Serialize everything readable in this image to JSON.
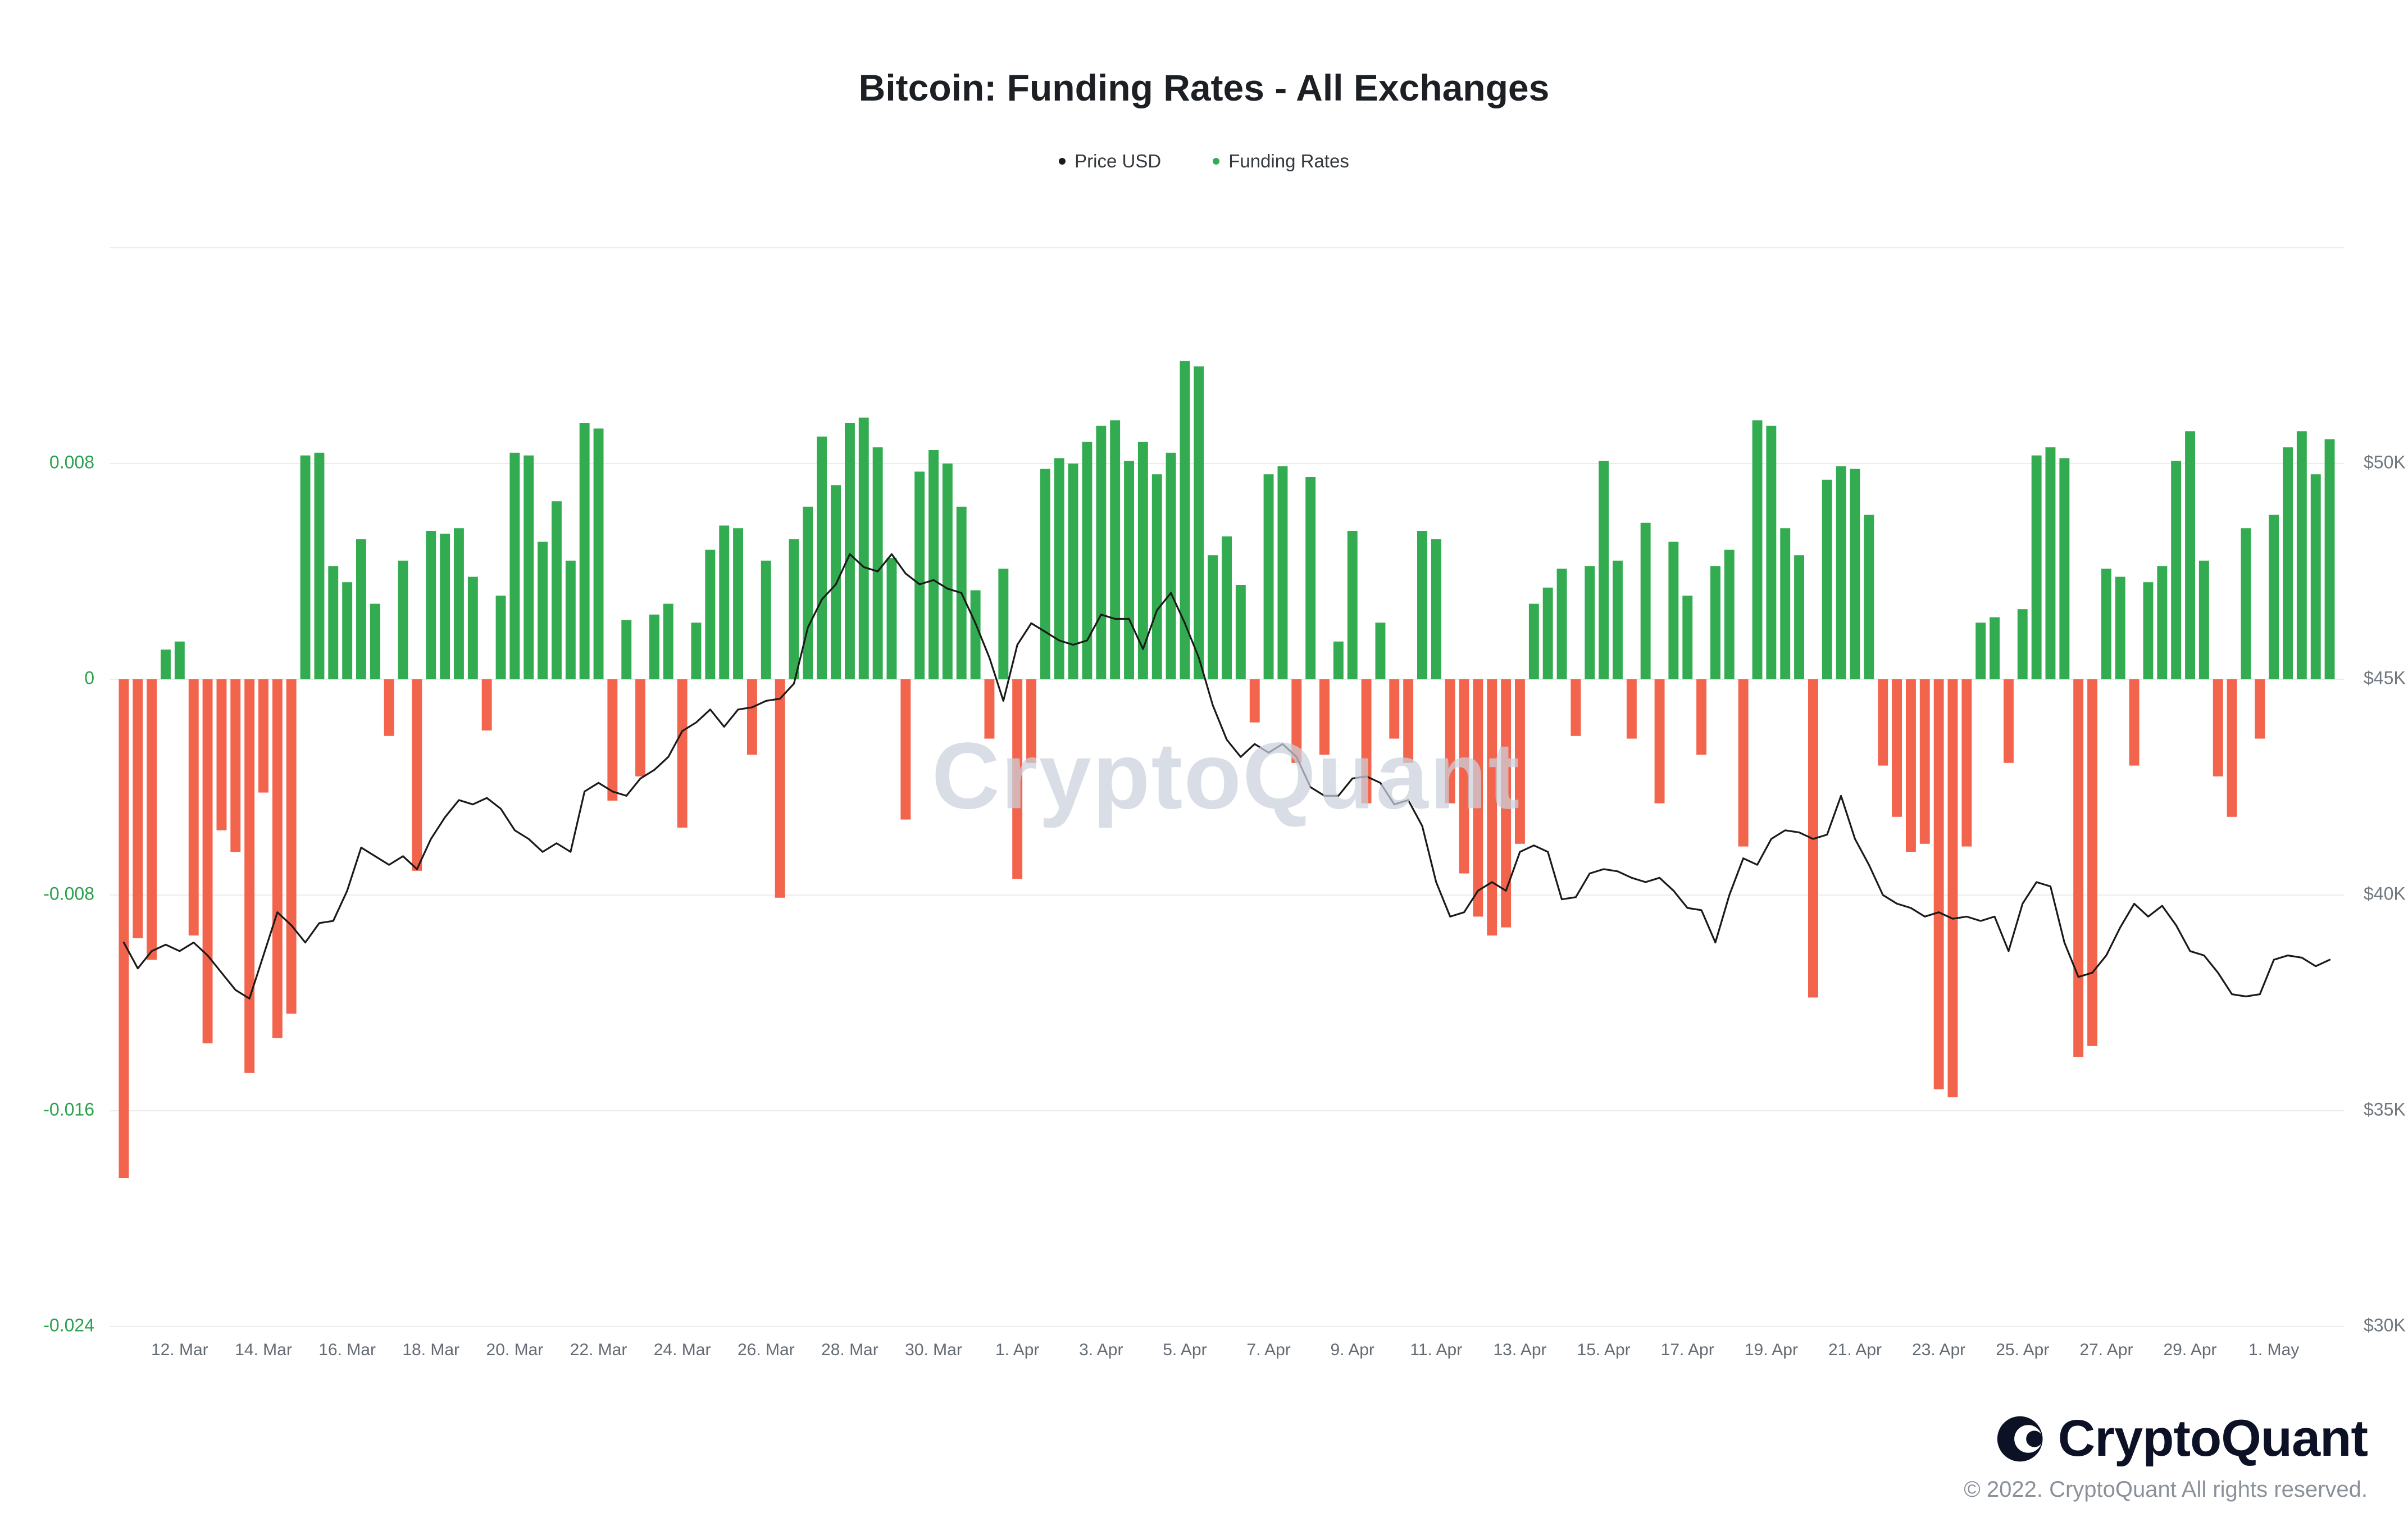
{
  "title": "Bitcoin: Funding Rates - All Exchanges",
  "legend": [
    {
      "label": "Price USD",
      "color": "#1a1a1a"
    },
    {
      "label": "Funding Rates",
      "color": "#33ab50"
    }
  ],
  "watermark": "CryptoQuant",
  "footer": {
    "brand": "CryptoQuant",
    "copyright": "© 2022. CryptoQuant All rights reserved."
  },
  "colors": {
    "positive": "#33ab50",
    "negative": "#f2644c",
    "price_line": "#1a1a1a",
    "left_axis_text": "#2aa14d",
    "right_axis_text": "#70787f",
    "x_axis_text": "#646b73",
    "grid": "#ececec"
  },
  "chart_data": {
    "type": "combo-bar-line",
    "title": "Bitcoin: Funding Rates - All Exchanges",
    "start_date": "2022-03-11",
    "end_date": "2022-05-02",
    "points_per_day": 3,
    "interval_hours": 8,
    "grid": true,
    "legend_position": "top-center",
    "gridline_values": [
      0.016,
      0.008,
      0,
      -0.008,
      -0.016,
      -0.024
    ],
    "left_axis": {
      "name": "Funding Rates",
      "labels": [
        "0.008",
        "0",
        "-0.008",
        "-0.016",
        "-0.024"
      ],
      "values": [
        0.008,
        0,
        -0.008,
        -0.016,
        -0.024
      ],
      "min": -0.024,
      "max": 0.016
    },
    "right_axis": {
      "name": "Price USD",
      "labels": [
        "$50K",
        "$45K",
        "$40K",
        "$35K",
        "$30K"
      ],
      "values": [
        50000,
        45000,
        40000,
        35000,
        30000
      ],
      "min": 30000,
      "max": 55000
    },
    "x_ticks": [
      "12. Mar",
      "14. Mar",
      "16. Mar",
      "18. Mar",
      "20. Mar",
      "22. Mar",
      "24. Mar",
      "26. Mar",
      "28. Mar",
      "30. Mar",
      "1. Apr",
      "3. Apr",
      "5. Apr",
      "7. Apr",
      "9. Apr",
      "11. Apr",
      "13. Apr",
      "15. Apr",
      "17. Apr",
      "19. Apr",
      "21. Apr",
      "23. Apr",
      "25. Apr",
      "27. Apr",
      "29. Apr",
      "1. May"
    ],
    "series": [
      {
        "name": "Funding Rates",
        "type": "bar",
        "values": [
          -0.0185,
          -0.0096,
          -0.0104,
          0.0011,
          0.0014,
          -0.0095,
          -0.0135,
          -0.0056,
          -0.0064,
          -0.0146,
          -0.0042,
          -0.0133,
          -0.0124,
          0.0083,
          0.0084,
          0.0042,
          0.0036,
          0.0052,
          0.0028,
          -0.0021,
          0.0044,
          -0.0071,
          0.0055,
          0.0054,
          0.0056,
          0.0038,
          -0.0019,
          0.0031,
          0.0084,
          0.0083,
          0.0051,
          0.0066,
          0.0044,
          0.0095,
          0.0093,
          -0.0045,
          0.0022,
          -0.0036,
          0.0024,
          0.0028,
          -0.0055,
          0.0021,
          0.0048,
          0.0057,
          0.0056,
          -0.0028,
          0.0044,
          -0.0081,
          0.0052,
          0.0064,
          0.009,
          0.0072,
          0.0095,
          0.0097,
          0.0086,
          0.0045,
          -0.0052,
          0.0077,
          0.0085,
          0.008,
          0.0064,
          0.0033,
          -0.0022,
          0.0041,
          -0.0074,
          -0.0031,
          0.0078,
          0.0082,
          0.008,
          0.0088,
          0.0094,
          0.0096,
          0.0081,
          0.0088,
          0.0076,
          0.0084,
          0.0118,
          0.0116,
          0.0046,
          0.0053,
          0.0035,
          -0.0016,
          0.0076,
          0.0079,
          -0.0031,
          0.0075,
          -0.0028,
          0.0014,
          0.0055,
          -0.0046,
          0.0021,
          -0.0022,
          -0.0031,
          0.0055,
          0.0052,
          -0.0046,
          -0.0072,
          -0.0088,
          -0.0095,
          -0.0092,
          -0.0061,
          0.0028,
          0.0034,
          0.0041,
          -0.0021,
          0.0042,
          0.0081,
          0.0044,
          -0.0022,
          0.0058,
          -0.0046,
          0.0051,
          0.0031,
          -0.0028,
          0.0042,
          0.0048,
          -0.0062,
          0.0096,
          0.0094,
          0.0056,
          0.0046,
          -0.0118,
          0.0074,
          0.0079,
          0.0078,
          0.0061,
          -0.0032,
          -0.0051,
          -0.0064,
          -0.0061,
          -0.0152,
          -0.0155,
          -0.0062,
          0.0021,
          0.0023,
          -0.0031,
          0.0026,
          0.0083,
          0.0086,
          0.0082,
          -0.014,
          -0.0136,
          0.0041,
          0.0038,
          -0.0032,
          0.0036,
          0.0042,
          0.0081,
          0.0092,
          0.0044,
          -0.0036,
          -0.0051,
          0.0056,
          -0.0022,
          0.0061,
          0.0086,
          0.0092,
          0.0076,
          0.0089
        ]
      },
      {
        "name": "Price USD",
        "type": "line",
        "values": [
          38900,
          38300,
          38700,
          38850,
          38700,
          38900,
          38600,
          38200,
          37800,
          37600,
          38600,
          39600,
          39300,
          38900,
          39350,
          39400,
          40100,
          41100,
          40900,
          40700,
          40900,
          40600,
          41300,
          41800,
          42200,
          42100,
          42250,
          42000,
          41500,
          41300,
          41000,
          41200,
          41000,
          42400,
          42600,
          42400,
          42300,
          42700,
          42900,
          43200,
          43800,
          44000,
          44300,
          43900,
          44300,
          44350,
          44500,
          44550,
          44900,
          46200,
          46850,
          47200,
          47900,
          47600,
          47500,
          47900,
          47450,
          47200,
          47300,
          47100,
          47000,
          46300,
          45500,
          44500,
          45800,
          46300,
          46100,
          45900,
          45800,
          45900,
          46500,
          46400,
          46400,
          45700,
          46600,
          47000,
          46300,
          45500,
          44400,
          43600,
          43200,
          43500,
          43300,
          43500,
          43200,
          42500,
          42300,
          42300,
          42700,
          42750,
          42600,
          42100,
          42200,
          41600,
          40300,
          39500,
          39600,
          40100,
          40300,
          40100,
          41000,
          41150,
          41000,
          39900,
          39950,
          40500,
          40600,
          40550,
          40400,
          40300,
          40400,
          40100,
          39700,
          39650,
          38900,
          40000,
          40850,
          40700,
          41300,
          41500,
          41450,
          41300,
          41400,
          42300,
          41300,
          40700,
          40000,
          39800,
          39700,
          39500,
          39600,
          39450,
          39500,
          39400,
          39500,
          38700,
          39800,
          40300,
          40200,
          38900,
          38100,
          38200,
          38600,
          39250,
          39800,
          39500,
          39750,
          39300,
          38700,
          38600,
          38200,
          37700,
          37650,
          37700,
          38500,
          38600,
          38550,
          38350,
          38500
        ]
      }
    ]
  }
}
